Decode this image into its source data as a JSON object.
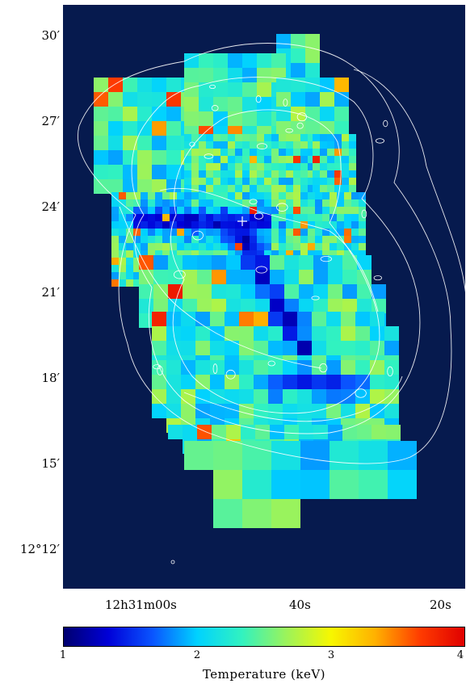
{
  "map": {
    "dec_ticks": [
      {
        "label": "30′",
        "pos": 0
      },
      {
        "label": "27′",
        "pos": 1
      },
      {
        "label": "24′",
        "pos": 2
      },
      {
        "label": "21′",
        "pos": 3
      },
      {
        "label": "18′",
        "pos": 4
      },
      {
        "label": "15′",
        "pos": 5
      },
      {
        "label": "12°12′",
        "pos": 6
      }
    ],
    "ra_ticks": [
      {
        "label": "12h31m00s",
        "pos": 0
      },
      {
        "label": "40s",
        "pos": 1
      },
      {
        "label": "20s",
        "pos": 2
      }
    ],
    "center_marker": "cross",
    "contours": "white",
    "background_color": "#061a4e"
  },
  "colorbar": {
    "label": "Temperature (keV)",
    "min": 1,
    "max": 4,
    "ticks": [
      "1",
      "2",
      "3",
      "4"
    ],
    "colormap": [
      "#00006f",
      "#0000d8",
      "#0a55ff",
      "#00d2ff",
      "#31f2c0",
      "#9cf35a",
      "#f7f700",
      "#ffb000",
      "#ff3c00",
      "#e00000"
    ]
  },
  "chart_data": {
    "type": "heatmap",
    "value_name": "Temperature (keV)",
    "value_range": [
      1,
      4
    ],
    "x_axis_ticks": [
      "12h31m00s",
      "40s",
      "20s"
    ],
    "y_axis_ticks": [
      "12°12′",
      "15′",
      "18′",
      "21′",
      "24′",
      "27′",
      "30′"
    ],
    "description_levels": {
      "cool_band": 1.3,
      "typical": 2.4,
      "hot_spots": 3.6
    }
  }
}
